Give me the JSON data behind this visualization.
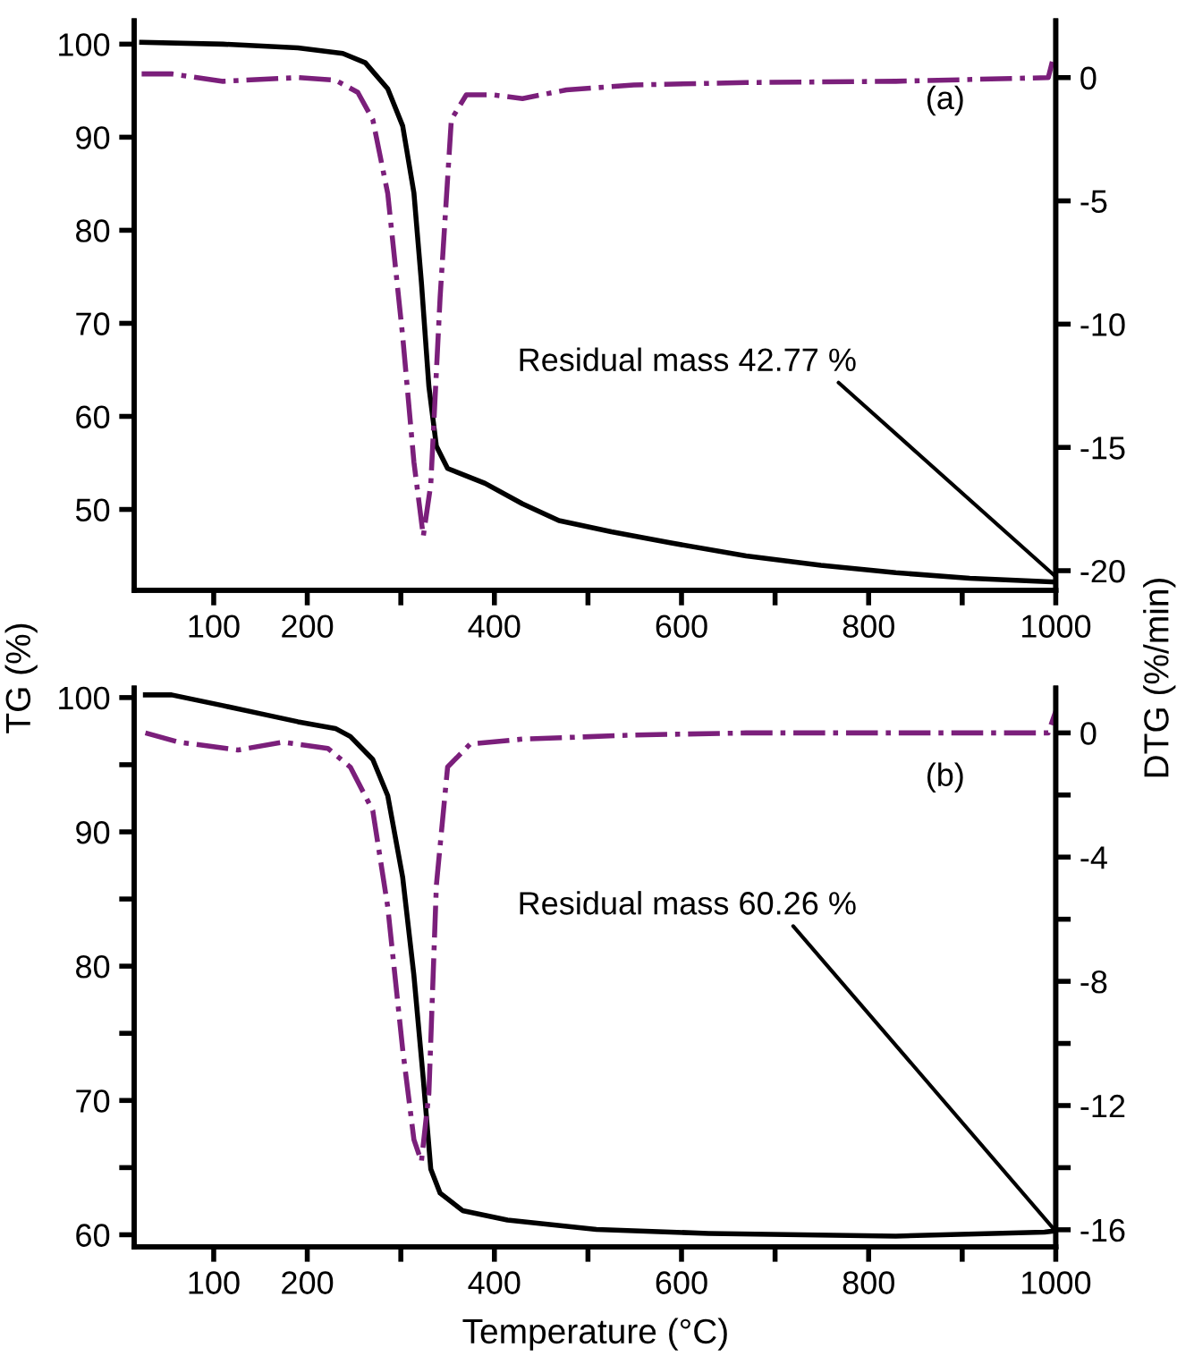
{
  "chart_data": [
    {
      "type": "line",
      "ylabel": "TG (%)",
      "y2label": "DTG (%/min)",
      "annotations": [
        "(a)",
        {
          "text": "Residual mass 42.77 %",
          "x": 1000,
          "y": 42.77
        }
      ],
      "xlim": [
        15,
        1000
      ],
      "xticks": [
        100,
        200,
        {
          "value": 300,
          "label": null
        },
        400,
        {
          "value": 500,
          "label": null
        },
        600,
        {
          "value": 700,
          "label": null
        },
        800,
        {
          "value": 900,
          "label": null
        },
        1000
      ],
      "ylim": [
        41.3,
        102.5
      ],
      "yticks": [
        50,
        60,
        70,
        80,
        90,
        100
      ],
      "y2lim": [
        -20.8,
        2.3
      ],
      "y2ticks": [
        -20,
        -15,
        -10,
        -5,
        0
      ],
      "grid": false,
      "legend": false,
      "series": [
        {
          "color": "#000000",
          "line_style": "solid",
          "x": [
            23,
            110,
            190,
            238,
            262,
            286,
            302,
            314,
            322,
            330,
            338,
            350,
            390,
            430,
            469,
            525,
            589,
            669,
            749,
            829,
            908,
            1000
          ],
          "values": [
            100.2,
            100,
            99.6,
            99.0,
            98,
            95.2,
            91.2,
            84,
            74.4,
            63.2,
            56.8,
            54.4,
            52.8,
            50.6,
            48.8,
            47.6,
            46.4,
            45,
            44,
            43.2,
            42.6,
            42.2
          ]
        },
        {
          "color": "#7b1f7b",
          "line_style": "dashdot",
          "axis": "y2",
          "x": [
            23,
            55,
            110,
            190,
            230,
            254,
            270,
            286,
            302,
            314,
            324,
            332,
            342,
            354,
            370,
            398,
            430,
            477,
            549,
            669,
            829,
            992,
            998
          ],
          "values": [
            0.15,
            0.15,
            -0.15,
            0,
            -0.1,
            -0.6,
            -1.7,
            -4.7,
            -10.5,
            -15.6,
            -18.6,
            -16.5,
            -8.9,
            -1.7,
            -0.7,
            -0.7,
            -0.85,
            -0.5,
            -0.3,
            -0.2,
            -0.15,
            0,
            0.9
          ]
        }
      ]
    },
    {
      "type": "line",
      "xlabel": "Temperature (°C)",
      "annotations": [
        "(b)",
        {
          "text": "Residual mass 60.26 %",
          "x": 1000,
          "y": 60.26
        }
      ],
      "xlim": [
        15,
        1000
      ],
      "xticks": [
        100,
        200,
        {
          "value": 300,
          "label": null
        },
        400,
        {
          "value": 500,
          "label": null
        },
        600,
        {
          "value": 700,
          "label": null
        },
        800,
        {
          "value": 900,
          "label": null
        },
        1000
      ],
      "ylim": [
        59.1,
        100.7
      ],
      "yticks": [
        60,
        {
          "value": 65,
          "label": null
        },
        70,
        {
          "value": 75,
          "label": null
        },
        80,
        {
          "value": 85,
          "label": null
        },
        90,
        {
          "value": 95,
          "label": null
        },
        100
      ],
      "y2lim": [
        -16.55,
        1.44
      ],
      "y2ticks": [
        -16,
        {
          "value": -14,
          "label": null
        },
        -12,
        {
          "value": -10,
          "label": null
        },
        -8,
        {
          "value": -6,
          "label": null
        },
        -4,
        {
          "value": -2,
          "label": null
        },
        0
      ],
      "grid": false,
      "legend": false,
      "series": [
        {
          "color": "#000000",
          "line_style": "solid",
          "x": [
            27,
            55,
            110,
            150,
            190,
            230,
            246,
            270,
            286,
            302,
            314,
            324,
            332,
            342,
            366,
            414,
            509,
            629,
            829,
            988,
            1000
          ],
          "values": [
            100.2,
            100.2,
            99.4,
            98.8,
            98.2,
            97.7,
            97.1,
            95.4,
            92.7,
            86.6,
            79.3,
            71.6,
            64.9,
            63.1,
            61.8,
            61.1,
            60.4,
            60.1,
            59.9,
            60.2,
            60.3
          ]
        },
        {
          "color": "#7b1f7b",
          "line_style": "dashdot",
          "axis": "y2",
          "x": [
            27,
            63,
            126,
            174,
            222,
            246,
            270,
            286,
            302,
            314,
            322,
            330,
            338,
            350,
            374,
            430,
            549,
            669,
            829,
            992,
            1000
          ],
          "values": [
            0,
            -0.3,
            -0.55,
            -0.3,
            -0.5,
            -1.1,
            -2.5,
            -5.6,
            -10.2,
            -13.1,
            -13.8,
            -11.6,
            -4.9,
            -1.1,
            -0.36,
            -0.2,
            -0.07,
            0,
            0,
            0,
            0.7
          ]
        }
      ]
    }
  ]
}
